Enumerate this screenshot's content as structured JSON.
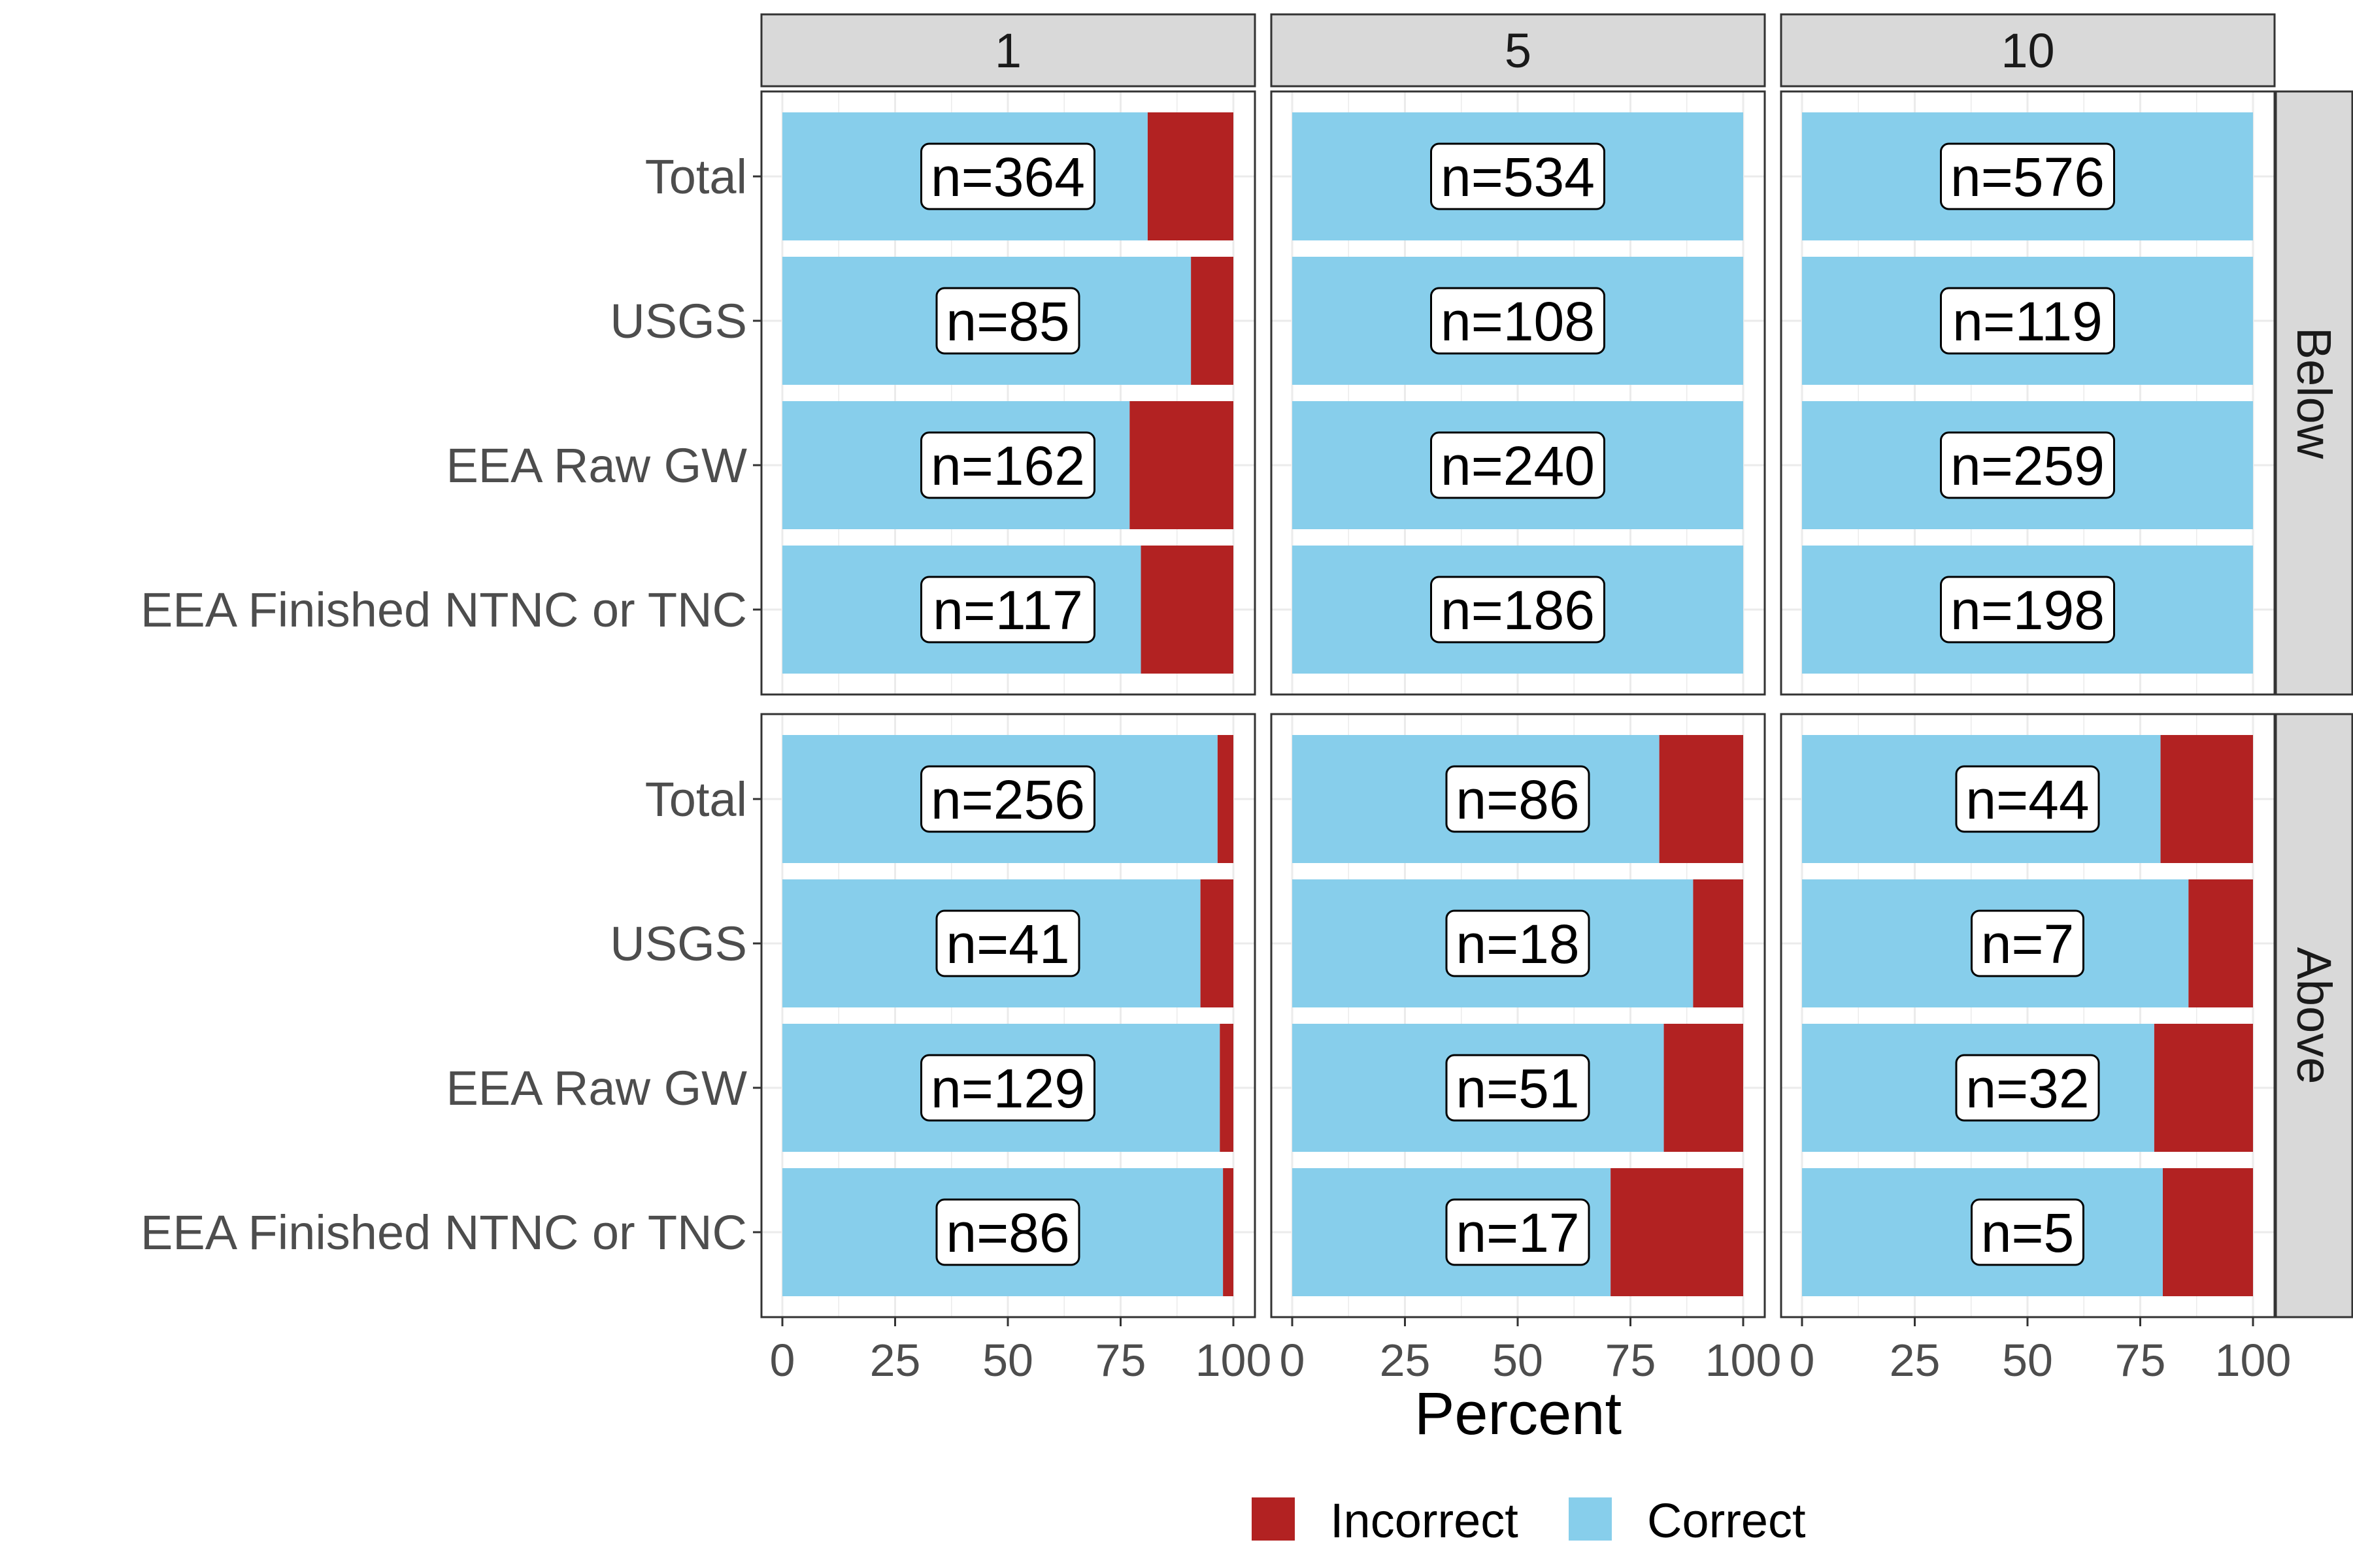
{
  "chart_data": {
    "type": "bar",
    "orientation": "horizontal",
    "stacked": true,
    "xlabel": "Percent",
    "ylabel": "",
    "xlim": [
      0,
      100
    ],
    "x_ticks": [
      "0",
      "25",
      "50",
      "75",
      "100"
    ],
    "categories": [
      "Total",
      "USGS",
      "EEA Raw GW",
      "EEA Finished NTNC or TNC"
    ],
    "column_facets": [
      "1",
      "5",
      "10"
    ],
    "row_facets": [
      "Below",
      "Above"
    ],
    "legend": {
      "position": "bottom",
      "entries": [
        {
          "name": "Incorrect",
          "color": "#B22222"
        },
        {
          "name": "Correct",
          "color": "#87CEEB"
        }
      ]
    },
    "grid": true,
    "panels": [
      {
        "row": "Below",
        "col": "1",
        "correct": [
          81,
          90.6,
          77,
          79.5
        ],
        "incorrect": [
          19,
          9.4,
          23,
          20.5
        ],
        "n_labels": [
          "n=364",
          "n=85",
          "n=162",
          "n=117"
        ]
      },
      {
        "row": "Below",
        "col": "5",
        "correct": [
          100,
          100,
          100,
          100
        ],
        "incorrect": [
          0,
          0,
          0,
          0
        ],
        "n_labels": [
          "n=534",
          "n=108",
          "n=240",
          "n=186"
        ]
      },
      {
        "row": "Below",
        "col": "10",
        "correct": [
          100,
          100,
          100,
          100
        ],
        "incorrect": [
          0,
          0,
          0,
          0
        ],
        "n_labels": [
          "n=576",
          "n=119",
          "n=259",
          "n=198"
        ]
      },
      {
        "row": "Above",
        "col": "1",
        "correct": [
          96.5,
          92.7,
          97,
          97.7
        ],
        "incorrect": [
          3.5,
          7.3,
          3,
          2.3
        ],
        "n_labels": [
          "n=256",
          "n=41",
          "n=129",
          "n=86"
        ]
      },
      {
        "row": "Above",
        "col": "5",
        "correct": [
          81.4,
          88.9,
          82.4,
          70.6
        ],
        "incorrect": [
          18.6,
          11.1,
          17.6,
          29.4
        ],
        "n_labels": [
          "n=86",
          "n=18",
          "n=51",
          "n=17"
        ]
      },
      {
        "row": "Above",
        "col": "10",
        "correct": [
          79.5,
          85.7,
          78.1,
          80
        ],
        "incorrect": [
          20.5,
          14.3,
          21.9,
          20
        ],
        "n_labels": [
          "n=44",
          "n=7",
          "n=32",
          "n=5"
        ]
      }
    ]
  }
}
